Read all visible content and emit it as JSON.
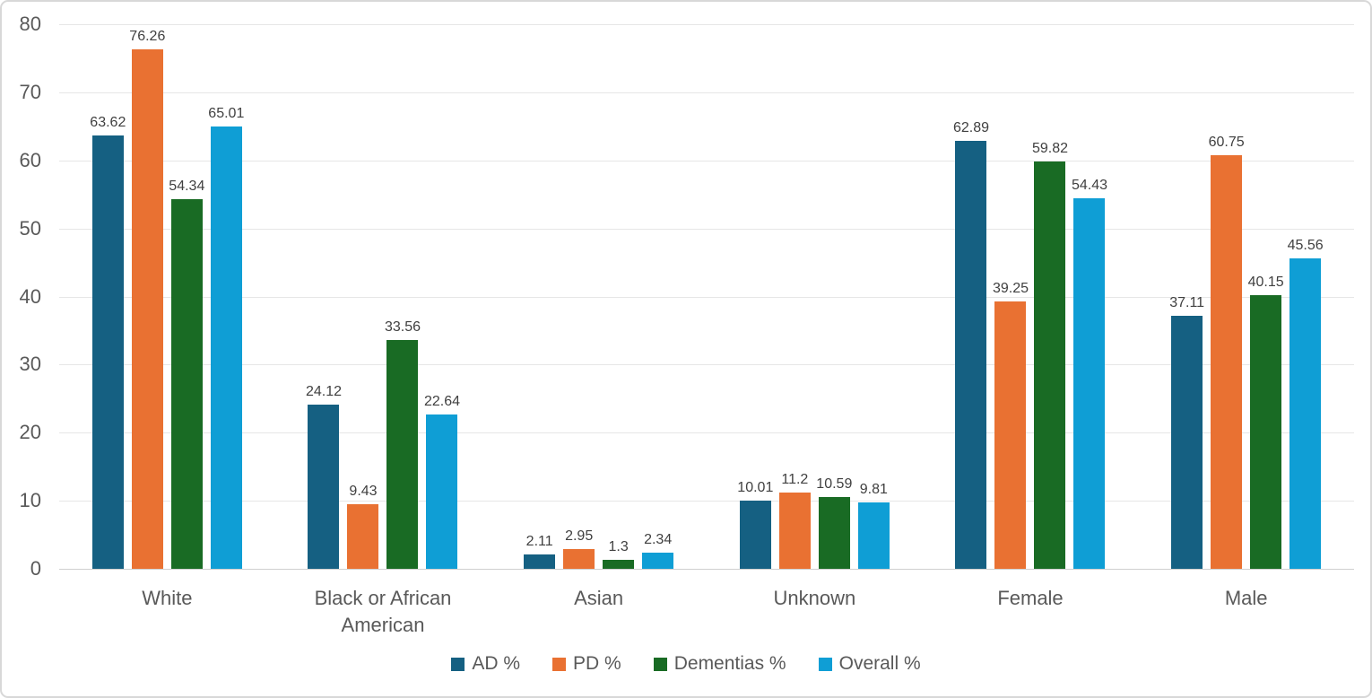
{
  "chart_data": {
    "type": "bar",
    "title": "",
    "xlabel": "",
    "ylabel": "",
    "categories": [
      "White",
      "Black or African American",
      "Asian",
      "Unknown",
      "Female",
      "Male"
    ],
    "series": [
      {
        "name": "AD %",
        "color": "#156082",
        "values": [
          63.62,
          24.12,
          2.11,
          10.01,
          62.89,
          37.11
        ]
      },
      {
        "name": "PD %",
        "color": "#E97132",
        "values": [
          76.26,
          9.43,
          2.95,
          11.2,
          39.25,
          60.75
        ]
      },
      {
        "name": "Dementias %",
        "color": "#196B24",
        "values": [
          54.34,
          33.56,
          1.3,
          10.59,
          59.82,
          40.15
        ]
      },
      {
        "name": "Overall %",
        "color": "#0F9ED5",
        "values": [
          65.01,
          22.64,
          2.34,
          9.81,
          54.43,
          45.56
        ]
      }
    ],
    "ylim": [
      0,
      80
    ],
    "yticks": [
      0,
      10,
      20,
      30,
      40,
      50,
      60,
      70,
      80
    ],
    "grid": true,
    "data_labels": true,
    "legend_position": "bottom",
    "style": {
      "gridline_color": "#e6e6e6",
      "baseline_color": "#d0d0d0",
      "axis_text_color": "#595959",
      "data_label_color": "#404040",
      "frame_border_color": "#d8d8d8",
      "background_color": "#ffffff"
    }
  }
}
